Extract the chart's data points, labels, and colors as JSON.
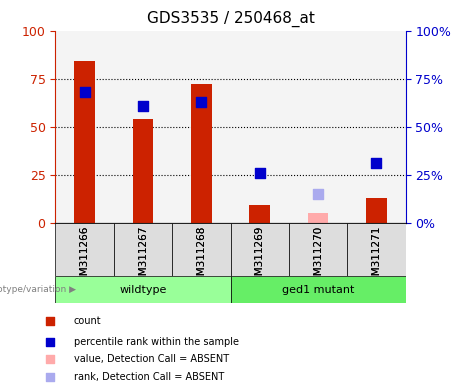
{
  "title": "GDS3535 / 250468_at",
  "samples": [
    "GSM311266",
    "GSM311267",
    "GSM311268",
    "GSM311269",
    "GSM311270",
    "GSM311271"
  ],
  "groups": [
    "wildtype",
    "wildtype",
    "wildtype",
    "ged1 mutant",
    "ged1 mutant",
    "ged1 mutant"
  ],
  "group_labels": [
    "wildtype",
    "ged1 mutant"
  ],
  "count_values": [
    84,
    54,
    72,
    9,
    null,
    13
  ],
  "count_absent_values": [
    null,
    null,
    null,
    null,
    5,
    null
  ],
  "percentile_values": [
    68,
    61,
    63,
    26,
    null,
    31
  ],
  "percentile_absent_values": [
    null,
    null,
    null,
    null,
    15,
    null
  ],
  "ylim_left": [
    0,
    100
  ],
  "ylim_right": [
    0,
    100
  ],
  "bar_color_red": "#cc2200",
  "bar_color_pink": "#ffaaaa",
  "dot_color_blue": "#0000cc",
  "dot_color_lightblue": "#aaaaee",
  "group_colors": [
    "#99ff99",
    "#66ff66"
  ],
  "background_color": "#dddddd",
  "grid_ticks": [
    25,
    50,
    75
  ],
  "legend_labels": [
    "count",
    "percentile rank within the sample",
    "value, Detection Call = ABSENT",
    "rank, Detection Call = ABSENT"
  ],
  "legend_colors": [
    "#cc2200",
    "#0000cc",
    "#ffaaaa",
    "#aaaaee"
  ],
  "ylabel_left": "",
  "ylabel_right": ""
}
